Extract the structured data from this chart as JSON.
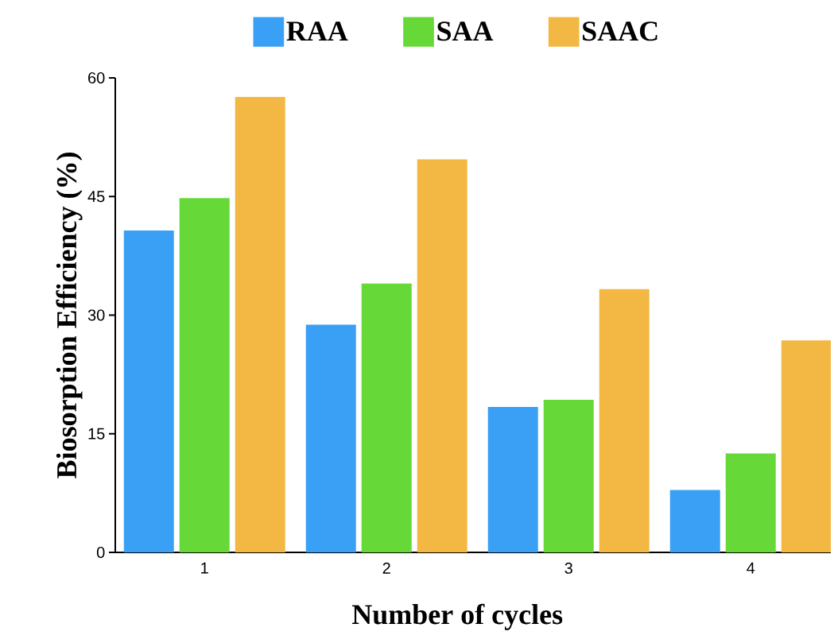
{
  "chart_data": {
    "type": "bar",
    "xlabel": "Number of cycles",
    "ylabel": "Biosorption Efficiency (%)",
    "categories": [
      "1",
      "2",
      "3",
      "4"
    ],
    "series": [
      {
        "name": "RAA",
        "color": "#3aa0f5",
        "values": [
          40.7,
          28.8,
          18.4,
          7.9
        ]
      },
      {
        "name": "SAA",
        "color": "#66d838",
        "values": [
          44.8,
          34.0,
          19.3,
          12.5
        ]
      },
      {
        "name": "SAAC",
        "color": "#f3b843",
        "values": [
          57.6,
          49.7,
          33.3,
          26.8
        ]
      }
    ],
    "ylim": [
      0,
      60
    ],
    "yticks": [
      0,
      15,
      30,
      45,
      60
    ],
    "legend": "top"
  }
}
